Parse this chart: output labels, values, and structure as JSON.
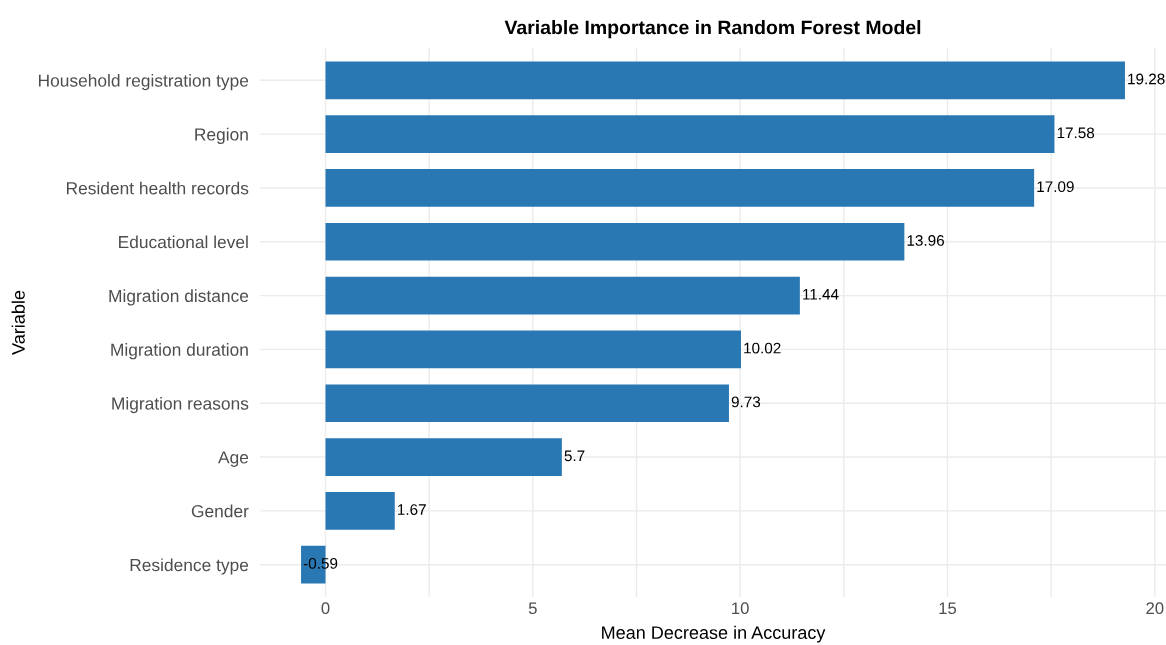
{
  "chart_data": {
    "type": "bar",
    "orientation": "horizontal",
    "title": "Variable Importance in Random Forest Model",
    "xlabel": "Mean Decrease in Accuracy",
    "ylabel": "Variable",
    "categories": [
      "Household registration type",
      "Region",
      "Resident health records",
      "Educational level",
      "Migration distance",
      "Migration duration",
      "Migration reasons",
      "Age",
      "Gender",
      "Residence type"
    ],
    "values": [
      19.28,
      17.58,
      17.09,
      13.96,
      11.44,
      10.02,
      9.73,
      5.7,
      1.67,
      -0.59
    ],
    "color": "#2a78b3",
    "xlim": [
      -1.58,
      20.27
    ],
    "xticks": [
      0,
      {
        "value": 2.5,
        "label": null
      },
      5,
      {
        "value": 7.5,
        "label": null
      },
      10,
      {
        "value": 12.5,
        "label": null
      },
      15,
      {
        "value": 17.5,
        "label": null
      },
      20
    ],
    "grid": true,
    "data_labels": true,
    "legend": false
  }
}
